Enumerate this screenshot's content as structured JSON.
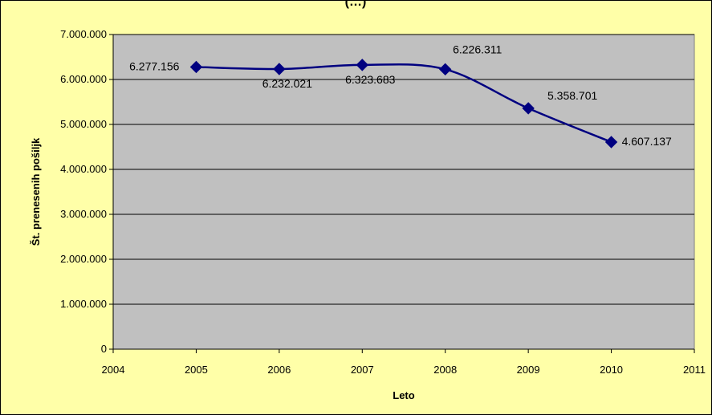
{
  "chart_data": {
    "type": "scatter",
    "title": "(…)",
    "xlabel": "Leto",
    "ylabel": "Št. prenesenih pošiljk",
    "xlim": [
      2004,
      2011
    ],
    "ylim": [
      0,
      7000000
    ],
    "x_ticks": [
      "2004",
      "2005",
      "2006",
      "2007",
      "2008",
      "2009",
      "2010",
      "2011"
    ],
    "y_ticks": [
      "0",
      "1.000.000",
      "2.000.000",
      "3.000.000",
      "4.000.000",
      "5.000.000",
      "6.000.000",
      "7.000.000"
    ],
    "grid": true,
    "plot_background": "#c0c0c0",
    "chart_background": "#ffffa8",
    "series": [
      {
        "color": "#000080",
        "x": [
          2005,
          2006,
          2007,
          2008,
          2009,
          2010
        ],
        "values": [
          6277156,
          6232021,
          6323683,
          6226311,
          5358701,
          4607137
        ],
        "labels": [
          "6.277.156",
          "6.232.021",
          "6.323.683",
          "6.226.311",
          "5.358.701",
          "4.607.137"
        ]
      }
    ]
  }
}
